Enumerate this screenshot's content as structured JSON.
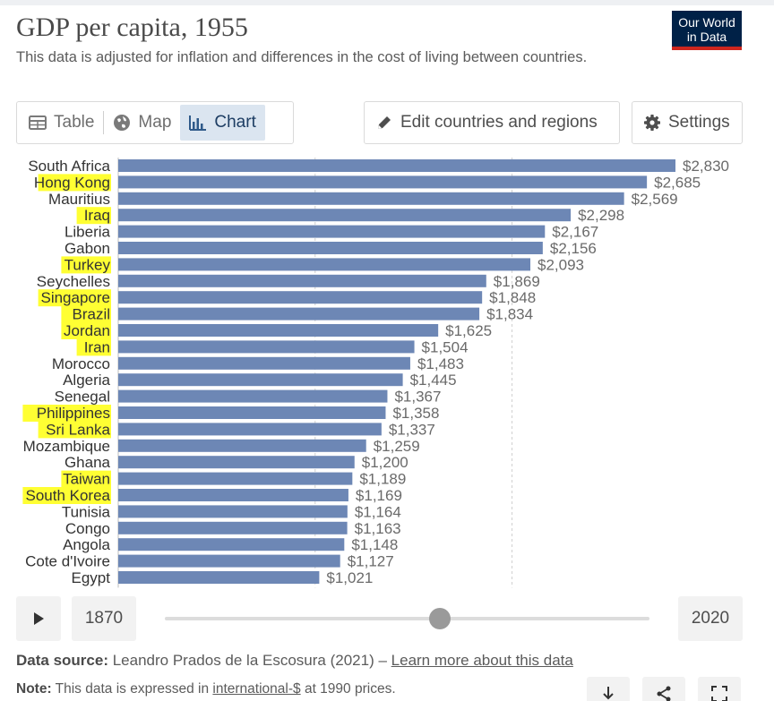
{
  "header": {
    "title": "GDP per capita, 1955",
    "subtitle": "This data is adjusted for inflation and differences in the cost of living between countries.",
    "logo_line1": "Our World",
    "logo_line2": "in Data"
  },
  "tabs": [
    {
      "label": "Table",
      "icon": "table-icon"
    },
    {
      "label": "Map",
      "icon": "globe-icon"
    },
    {
      "label": "Chart",
      "icon": "bar-chart-icon",
      "active": true
    }
  ],
  "toolbar": {
    "edit_label": "Edit countries and regions",
    "settings_label": "Settings"
  },
  "colors": {
    "bar": "#6d87b5",
    "highlight": "#ffff33",
    "label": "#333333",
    "value": "#6a6a6a"
  },
  "chart_data": {
    "type": "bar",
    "orientation": "horizontal",
    "categories": [
      "South Africa",
      "Hong Kong",
      "Mauritius",
      "Iraq",
      "Liberia",
      "Gabon",
      "Turkey",
      "Seychelles",
      "Singapore",
      "Brazil",
      "Jordan",
      "Iran",
      "Morocco",
      "Algeria",
      "Senegal",
      "Philippines",
      "Sri Lanka",
      "Mozambique",
      "Ghana",
      "Taiwan",
      "South Korea",
      "Tunisia",
      "Congo",
      "Angola",
      "Cote d'Ivoire",
      "Egypt"
    ],
    "values": [
      2830,
      2685,
      2569,
      2298,
      2167,
      2156,
      2093,
      1869,
      1848,
      1834,
      1625,
      1504,
      1483,
      1445,
      1367,
      1358,
      1337,
      1259,
      1200,
      1189,
      1169,
      1164,
      1163,
      1148,
      1127,
      1021
    ],
    "value_labels": [
      "$2,830",
      "$2,685",
      "$2,569",
      "$2,298",
      "$2,167",
      "$2,156",
      "$2,093",
      "$1,869",
      "$1,848",
      "$1,834",
      "$1,625",
      "$1,504",
      "$1,483",
      "$1,445",
      "$1,367",
      "$1,358",
      "$1,337",
      "$1,259",
      "$1,200",
      "$1,189",
      "$1,169",
      "$1,164",
      "$1,163",
      "$1,148",
      "$1,127",
      "$1,021"
    ],
    "highlighted": [
      "Hong Kong",
      "Iraq",
      "Turkey",
      "Singapore",
      "Brazil",
      "Jordan",
      "Iran",
      "Philippines",
      "Sri Lanka",
      "Taiwan",
      "South Korea"
    ],
    "xlim": [
      0,
      2830
    ],
    "gridlines": [
      1000,
      2000
    ],
    "grid": true,
    "title": "",
    "xlabel": "",
    "ylabel": ""
  },
  "timeline": {
    "start_year": "1870",
    "end_year": "2020",
    "current_year": 1955,
    "min_year": 1870,
    "max_year": 2020
  },
  "footer": {
    "source_label": "Data source:",
    "source_text": "Leandro Prados de la Escosura (2021) –",
    "source_link": "Learn more about this data",
    "note_label": "Note:",
    "note_text_1": "This data is expressed in",
    "note_link": "international-$",
    "note_text_2": "at 1990 prices."
  }
}
